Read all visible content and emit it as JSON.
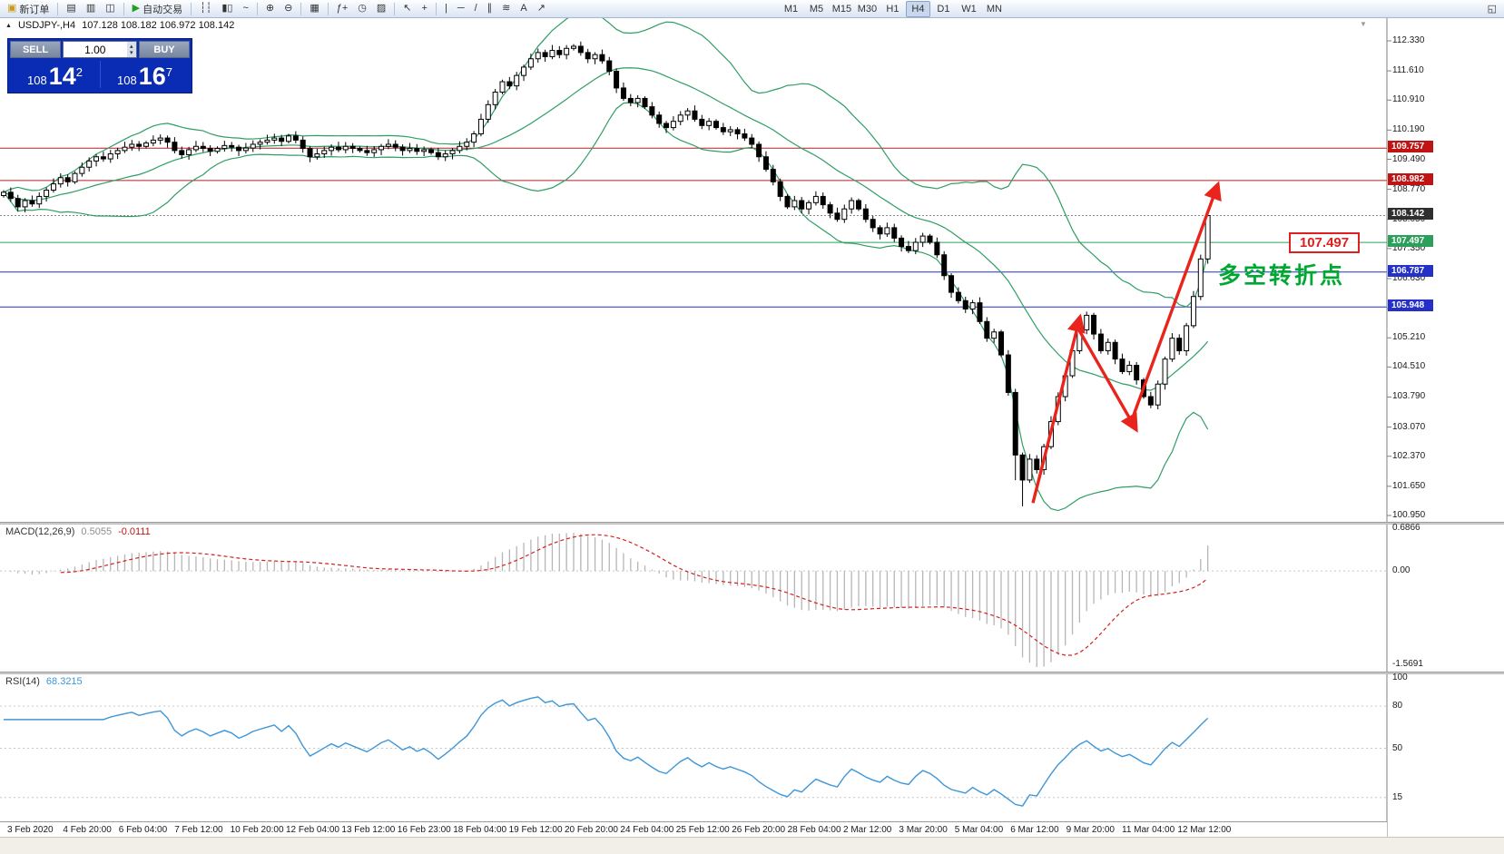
{
  "toolbar": {
    "groups": [
      {
        "items": [
          {
            "name": "new-order-button",
            "glyph": "▣",
            "glyph_color": "#c99a1e",
            "label": "新订单"
          }
        ]
      },
      {
        "items": [
          {
            "name": "market-watch-button",
            "glyph": "▤"
          },
          {
            "name": "data-window-button",
            "glyph": "▥"
          },
          {
            "name": "navigator-button",
            "glyph": "◫"
          }
        ]
      },
      {
        "items": [
          {
            "name": "auto-trading-button",
            "glyph": "▶",
            "glyph_color": "#1fa11f",
            "label": "自动交易"
          }
        ]
      },
      {
        "items": [
          {
            "name": "bar-chart-button",
            "glyph": "┆┆"
          },
          {
            "name": "candlestick-chart-button",
            "glyph": "▮▯"
          },
          {
            "name": "line-chart-button",
            "glyph": "~"
          }
        ]
      },
      {
        "items": [
          {
            "name": "zoom-in-button",
            "glyph": "⊕"
          },
          {
            "name": "zoom-out-button",
            "glyph": "⊖"
          }
        ]
      },
      {
        "items": [
          {
            "name": "tile-windows-button",
            "glyph": "▦"
          }
        ]
      },
      {
        "items": [
          {
            "name": "indicators-button",
            "glyph": "ƒ+"
          },
          {
            "name": "periods-button",
            "glyph": "◷"
          },
          {
            "name": "templates-button",
            "glyph": "▨"
          }
        ]
      },
      {
        "items": [
          {
            "name": "cursor-button",
            "glyph": "↖"
          },
          {
            "name": "crosshair-button",
            "glyph": "+"
          }
        ]
      },
      {
        "items": [
          {
            "name": "vertical-line-button",
            "glyph": "|"
          },
          {
            "name": "horizontal-line-button",
            "glyph": "─"
          },
          {
            "name": "trendline-button",
            "glyph": "/"
          },
          {
            "name": "channel-button",
            "glyph": "∥"
          },
          {
            "name": "fibonacci-button",
            "glyph": "≋"
          },
          {
            "name": "text-button",
            "glyph": "A"
          },
          {
            "name": "arrows-button",
            "glyph": "↗"
          }
        ]
      }
    ],
    "timeframes": {
      "label_names": [
        "M1",
        "M5",
        "M15",
        "M30",
        "H1",
        "H4",
        "D1",
        "W1",
        "MN"
      ],
      "active": "H4"
    },
    "overflow": {
      "name": "arrange-windows-button",
      "glyph": "◱"
    }
  },
  "caption": {
    "symbol": "USDJPY-,H4",
    "ohlc": "107.128 108.182 106.972 108.142"
  },
  "trade_panel": {
    "sell": "SELL",
    "buy": "BUY",
    "lot": "1.00",
    "sell_price_prefix": "108",
    "sell_price_big": "14",
    "sell_price_sup": "2",
    "buy_price_prefix": "108",
    "buy_price_big": "16",
    "buy_price_sup": "7"
  },
  "indicators": {
    "macd": {
      "name": "MACD(12,26,9)",
      "main_value": "0.5055",
      "signal_value": "-0.0111",
      "axis": {
        "top": "0.6866",
        "zero": "0.00",
        "bottom": "-1.5691"
      },
      "zero_ratio": 0.3044
    },
    "rsi": {
      "name": "RSI(14)",
      "value": "68.3215",
      "axis_labels": [
        {
          "v": 100,
          "t": "100"
        },
        {
          "v": 80,
          "t": "80"
        },
        {
          "v": 50,
          "t": "50"
        },
        {
          "v": 15,
          "t": "15"
        }
      ],
      "levels": [
        80,
        50,
        15
      ]
    }
  },
  "annotations": {
    "price_callout": "107.497",
    "note_cn": "多空转折点"
  },
  "chart_data": {
    "type": "candlestick",
    "symbol": "USDJPY",
    "timeframe": "H4",
    "overlays": [
      "Bollinger Bands (20,2)"
    ],
    "colors": {
      "bull": "#ffffff",
      "bear": "#000000",
      "outline": "#000000",
      "bands": "#2f9e64",
      "macd_hist": "#b6b6b6",
      "macd_signal": "#d42020",
      "rsi_line": "#3d96d9",
      "arrow": "#e8241c"
    },
    "first_open": 108.62,
    "closes": [
      108.7,
      108.55,
      108.35,
      108.5,
      108.42,
      108.6,
      108.75,
      108.9,
      109.05,
      108.95,
      109.15,
      109.3,
      109.45,
      109.55,
      109.5,
      109.62,
      109.7,
      109.78,
      109.85,
      109.8,
      109.88,
      109.95,
      110.0,
      109.9,
      109.7,
      109.6,
      109.72,
      109.8,
      109.75,
      109.68,
      109.75,
      109.82,
      109.78,
      109.7,
      109.76,
      109.85,
      109.9,
      109.95,
      110.0,
      109.92,
      110.05,
      109.95,
      109.75,
      109.55,
      109.62,
      109.7,
      109.78,
      109.72,
      109.8,
      109.75,
      109.7,
      109.65,
      109.72,
      109.8,
      109.85,
      109.78,
      109.7,
      109.75,
      109.68,
      109.72,
      109.65,
      109.55,
      109.62,
      109.7,
      109.8,
      109.9,
      110.1,
      110.45,
      110.8,
      111.1,
      111.35,
      111.25,
      111.5,
      111.7,
      111.9,
      112.05,
      111.95,
      112.1,
      112.0,
      112.15,
      112.2,
      112.05,
      111.9,
      112.0,
      111.85,
      111.6,
      111.2,
      110.95,
      110.85,
      110.95,
      110.75,
      110.55,
      110.35,
      110.25,
      110.4,
      110.55,
      110.65,
      110.45,
      110.3,
      110.4,
      110.25,
      110.15,
      110.2,
      110.1,
      110.0,
      109.85,
      109.55,
      109.25,
      108.95,
      108.6,
      108.35,
      108.5,
      108.3,
      108.45,
      108.6,
      108.4,
      108.2,
      108.05,
      108.3,
      108.5,
      108.3,
      108.05,
      107.85,
      107.7,
      107.85,
      107.6,
      107.4,
      107.3,
      107.5,
      107.65,
      107.5,
      107.2,
      106.7,
      106.3,
      106.1,
      105.9,
      106.05,
      105.6,
      105.2,
      105.35,
      104.8,
      103.9,
      102.4,
      101.8,
      102.3,
      102.05,
      102.6,
      103.2,
      103.8,
      104.3,
      104.9,
      105.4,
      105.75,
      105.3,
      104.9,
      105.1,
      104.7,
      104.4,
      104.55,
      104.2,
      103.8,
      103.6,
      104.1,
      104.7,
      105.2,
      104.9,
      105.5,
      106.2,
      107.1,
      108.14
    ],
    "deep_wick_bars": [
      142,
      143
    ],
    "y_axis": {
      "max": 112.33,
      "min": 100.95,
      "labels": [
        {
          "price": 112.33,
          "text": "112.330"
        },
        {
          "price": 111.61,
          "text": "111.610"
        },
        {
          "price": 110.91,
          "text": "110.910"
        },
        {
          "price": 110.19,
          "text": "110.190"
        },
        {
          "price": 109.49,
          "text": "109.490"
        },
        {
          "price": 108.77,
          "text": "108.770"
        },
        {
          "price": 108.05,
          "text": "108.050"
        },
        {
          "price": 107.35,
          "text": "107.350"
        },
        {
          "price": 106.63,
          "text": "106.630"
        },
        {
          "price": 105.91,
          "text": "105.910"
        },
        {
          "price": 105.21,
          "text": "105.210"
        },
        {
          "price": 104.51,
          "text": "104.510"
        },
        {
          "price": 103.79,
          "text": "103.790"
        },
        {
          "price": 103.07,
          "text": "103.070"
        },
        {
          "price": 102.37,
          "text": "102.370"
        },
        {
          "price": 101.65,
          "text": "101.650"
        },
        {
          "price": 100.95,
          "text": "100.950"
        }
      ]
    },
    "hlines": [
      {
        "price": 109.757,
        "color": "#b22020",
        "label": "109.757",
        "box_bg": "#c01414"
      },
      {
        "price": 108.982,
        "color": "#b22020",
        "label": "108.982",
        "box_bg": "#c01414"
      },
      {
        "price": 108.142,
        "color": "#8a8a8a",
        "dash": "2 2",
        "label": "108.142",
        "box_bg": "#2f2f2f"
      },
      {
        "price": 107.497,
        "color": "#2ca05a",
        "label": "107.497",
        "box_bg": "#2ca05a"
      },
      {
        "price": 106.787,
        "color": "#2430c8",
        "label": "106.787",
        "box_bg": "#2430c8"
      },
      {
        "price": 105.948,
        "color": "#2430c8",
        "label": "105.948",
        "box_bg": "#2430c8"
      }
    ],
    "arrows": [
      [
        1138,
        101.25,
        1190,
        105.72
      ],
      [
        1186,
        105.5,
        1252,
        103.0
      ],
      [
        1248,
        103.3,
        1342,
        108.9
      ]
    ],
    "x_axis_labels": [
      "3 Feb 2020",
      "4 Feb 20:00",
      "6 Feb 04:00",
      "7 Feb 12:00",
      "10 Feb 20:00",
      "12 Feb 04:00",
      "13 Feb 12:00",
      "16 Feb 23:00",
      "18 Feb 04:00",
      "19 Feb 12:00",
      "20 Feb 20:00",
      "24 Feb 04:00",
      "25 Feb 12:00",
      "26 Feb 20:00",
      "28 Feb 04:00",
      "2 Mar 12:00",
      "3 Mar 20:00",
      "5 Mar 04:00",
      "6 Mar 12:00",
      "9 Mar 20:00",
      "11 Mar 04:00",
      "12 Mar 12:00"
    ]
  }
}
